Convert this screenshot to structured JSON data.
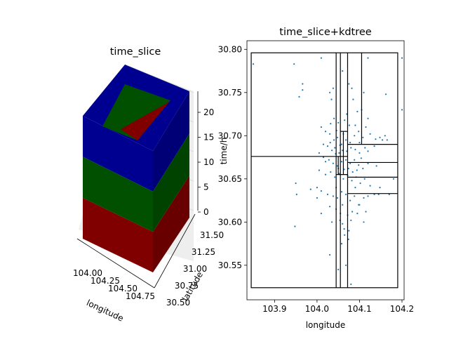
{
  "chart_data": [
    {
      "type": "3d-bar",
      "title": "time_slice",
      "xlabel": "longitude",
      "ylabel": "latitude",
      "zlabel": "time/h",
      "x_ticks": [
        "104.00",
        "104.25",
        "104.50",
        "104.75"
      ],
      "y_ticks": [
        "30.50",
        "30.75",
        "31.00",
        "31.25",
        "31.50"
      ],
      "z_ticks": [
        "0",
        "5",
        "10",
        "15",
        "20"
      ],
      "zlim": [
        0,
        24
      ],
      "slices": [
        {
          "from": 0,
          "to": 8,
          "color": "#800000"
        },
        {
          "from": 8,
          "to": 16,
          "color": "#005000"
        },
        {
          "from": 16,
          "to": 24,
          "color": "#000090"
        }
      ],
      "grid": true
    },
    {
      "type": "scatter",
      "title": "time_slice+kdtree",
      "xlabel": "longitude",
      "ylabel": "",
      "xlim": [
        103.835,
        104.205
      ],
      "ylim": [
        30.51,
        30.81
      ],
      "x_ticks": [
        "103.9",
        "104.0",
        "104.1",
        "104.2"
      ],
      "y_ticks": [
        "30.55",
        "30.60",
        "30.65",
        "30.70",
        "30.75",
        "30.80"
      ],
      "marker_color": "#1f77b4",
      "kdtree_box": {
        "x": [
          103.845,
          104.19
        ],
        "y": [
          30.524,
          30.796
        ]
      },
      "kdtree_vertical": [
        {
          "x": 104.045,
          "y0": 30.524,
          "y1": 30.796
        },
        {
          "x": 104.055,
          "y0": 30.524,
          "y1": 30.796
        },
        {
          "x": 104.072,
          "y0": 30.524,
          "y1": 30.796
        },
        {
          "x": 104.105,
          "y0": 30.69,
          "y1": 30.796
        },
        {
          "x": 104.062,
          "y0": 30.655,
          "y1": 30.705
        },
        {
          "x": 104.05,
          "y0": 30.655,
          "y1": 30.676
        }
      ],
      "kdtree_horizontal": [
        {
          "y": 30.676,
          "x0": 103.845,
          "x1": 104.045
        },
        {
          "y": 30.69,
          "x0": 104.072,
          "x1": 104.19
        },
        {
          "y": 30.669,
          "x0": 104.072,
          "x1": 104.19
        },
        {
          "y": 30.652,
          "x0": 104.072,
          "x1": 104.19
        },
        {
          "y": 30.633,
          "x0": 104.072,
          "x1": 104.19
        },
        {
          "y": 30.705,
          "x0": 104.055,
          "x1": 104.072
        },
        {
          "y": 30.655,
          "x0": 104.045,
          "x1": 104.072
        },
        {
          "y": 30.676,
          "x0": 104.045,
          "x1": 104.072
        }
      ],
      "points": [
        [
          103.85,
          30.783
        ],
        [
          103.946,
          30.783
        ],
        [
          103.966,
          30.76
        ],
        [
          103.966,
          30.753
        ],
        [
          103.958,
          30.745
        ],
        [
          104.01,
          30.79
        ],
        [
          104.12,
          30.79
        ],
        [
          104.2,
          30.79
        ],
        [
          104.03,
          30.75
        ],
        [
          104.038,
          30.755
        ],
        [
          104.06,
          30.775
        ],
        [
          104.075,
          30.76
        ],
        [
          104.082,
          30.755
        ],
        [
          104.11,
          30.75
        ],
        [
          104.162,
          30.748
        ],
        [
          104.04,
          30.72
        ],
        [
          104.05,
          30.715
        ],
        [
          104.065,
          30.718
        ],
        [
          104.07,
          30.725
        ],
        [
          104.095,
          30.728
        ],
        [
          104.105,
          30.73
        ],
        [
          104.2,
          30.73
        ],
        [
          104.12,
          30.72
        ],
        [
          104.01,
          30.71
        ],
        [
          104.02,
          30.705
        ],
        [
          104.03,
          30.702
        ],
        [
          104.04,
          30.695
        ],
        [
          104.048,
          30.698
        ],
        [
          104.058,
          30.69
        ],
        [
          104.068,
          30.695
        ],
        [
          104.078,
          30.692
        ],
        [
          104.088,
          30.7
        ],
        [
          104.098,
          30.705
        ],
        [
          104.108,
          30.698
        ],
        [
          104.115,
          30.71
        ],
        [
          104.125,
          30.702
        ],
        [
          104.138,
          30.696
        ],
        [
          104.148,
          30.698
        ],
        [
          104.16,
          30.7
        ],
        [
          104.165,
          30.695
        ],
        [
          104.015,
          30.69
        ],
        [
          104.025,
          30.688
        ],
        [
          104.035,
          30.683
        ],
        [
          104.042,
          30.686
        ],
        [
          104.052,
          30.68
        ],
        [
          104.06,
          30.683
        ],
        [
          104.07,
          30.682
        ],
        [
          104.08,
          30.686
        ],
        [
          104.09,
          30.684
        ],
        [
          104.1,
          30.68
        ],
        [
          104.12,
          30.682
        ],
        [
          104.135,
          30.688
        ],
        [
          104.005,
          30.68
        ],
        [
          104.015,
          30.675
        ],
        [
          104.028,
          30.672
        ],
        [
          104.038,
          30.668
        ],
        [
          104.048,
          30.665
        ],
        [
          104.058,
          30.67
        ],
        [
          104.068,
          30.672
        ],
        [
          104.078,
          30.668
        ],
        [
          104.088,
          30.672
        ],
        [
          104.098,
          30.666
        ],
        [
          104.108,
          30.662
        ],
        [
          104.12,
          30.668
        ],
        [
          104.14,
          30.665
        ],
        [
          104.005,
          30.66
        ],
        [
          104.02,
          30.655
        ],
        [
          104.032,
          30.658
        ],
        [
          104.042,
          30.652
        ],
        [
          104.052,
          30.656
        ],
        [
          104.062,
          30.65
        ],
        [
          104.072,
          30.654
        ],
        [
          104.082,
          30.648
        ],
        [
          104.092,
          30.652
        ],
        [
          104.102,
          30.645
        ],
        [
          104.112,
          30.65
        ],
        [
          104.125,
          30.642
        ],
        [
          104.148,
          30.64
        ],
        [
          104.17,
          30.632
        ],
        [
          104.18,
          30.65
        ],
        [
          103.95,
          30.645
        ],
        [
          103.952,
          30.632
        ],
        [
          103.985,
          30.638
        ],
        [
          104.0,
          30.64
        ],
        [
          104.01,
          30.636
        ],
        [
          104.025,
          30.632
        ],
        [
          104.038,
          30.63
        ],
        [
          104.048,
          30.628
        ],
        [
          104.058,
          30.635
        ],
        [
          104.068,
          30.632
        ],
        [
          104.078,
          30.625
        ],
        [
          104.088,
          30.63
        ],
        [
          104.098,
          30.62
        ],
        [
          104.11,
          30.628
        ],
        [
          104.12,
          30.63
        ],
        [
          104.135,
          30.632
        ],
        [
          104.145,
          30.632
        ],
        [
          104.0,
          30.628
        ],
        [
          104.045,
          30.615
        ],
        [
          104.055,
          30.61
        ],
        [
          104.072,
          30.608
        ],
        [
          104.095,
          30.61
        ],
        [
          104.03,
          30.618
        ],
        [
          104.1,
          30.62
        ],
        [
          104.035,
          30.6
        ],
        [
          104.06,
          30.598
        ],
        [
          104.08,
          30.602
        ],
        [
          104.01,
          30.61
        ],
        [
          103.948,
          30.595
        ],
        [
          104.075,
          30.59
        ],
        [
          104.065,
          30.585
        ],
        [
          104.058,
          30.575
        ],
        [
          104.03,
          30.562
        ],
        [
          104.05,
          30.545
        ],
        [
          104.068,
          30.55
        ],
        [
          104.08,
          30.528
        ],
        [
          104.074,
          30.58
        ],
        [
          104.054,
          30.602
        ],
        [
          104.064,
          30.592
        ],
        [
          104.045,
          30.64
        ],
        [
          104.06,
          30.62
        ],
        [
          104.083,
          30.612
        ],
        [
          104.09,
          30.64
        ],
        [
          104.115,
          30.612
        ],
        [
          104.11,
          30.6
        ],
        [
          104.02,
          30.67
        ],
        [
          104.031,
          30.692
        ],
        [
          104.044,
          30.679
        ],
        [
          104.054,
          30.689
        ],
        [
          104.064,
          30.661
        ],
        [
          104.074,
          30.662
        ],
        [
          104.084,
          30.658
        ],
        [
          104.094,
          30.66
        ],
        [
          104.104,
          30.674
        ],
        [
          104.113,
          30.686
        ],
        [
          104.032,
          30.714
        ],
        [
          104.046,
          30.706
        ],
        [
          104.062,
          30.702
        ],
        [
          104.076,
          30.712
        ],
        [
          104.09,
          30.712
        ],
        [
          104.1,
          30.692
        ],
        [
          104.154,
          30.695
        ],
        [
          104.034,
          30.742
        ],
        [
          104.085,
          30.742
        ],
        [
          104.05,
          30.662
        ]
      ]
    }
  ]
}
